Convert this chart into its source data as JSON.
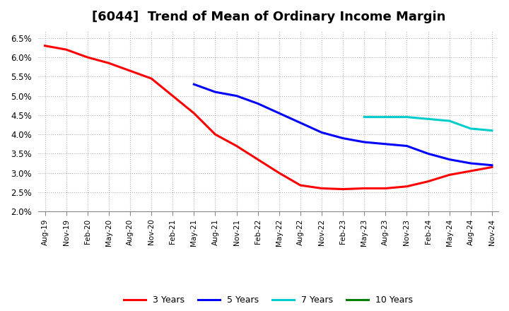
{
  "title": "[6044]  Trend of Mean of Ordinary Income Margin",
  "title_fontsize": 13,
  "ylim": [
    0.02,
    0.067
  ],
  "yticks": [
    0.02,
    0.025,
    0.03,
    0.035,
    0.04,
    0.045,
    0.05,
    0.055,
    0.06,
    0.065
  ],
  "background_color": "#ffffff",
  "grid_color": "#aaaaaa",
  "series": {
    "3 Years": {
      "color": "#ff0000",
      "data": [
        [
          "Aug-19",
          0.063
        ],
        [
          "Nov-19",
          0.062
        ],
        [
          "Feb-20",
          0.06
        ],
        [
          "May-20",
          0.0585
        ],
        [
          "Aug-20",
          0.0565
        ],
        [
          "Nov-20",
          0.0545
        ],
        [
          "Feb-21",
          0.05
        ],
        [
          "May-21",
          0.0455
        ],
        [
          "Aug-21",
          0.04
        ],
        [
          "Nov-21",
          0.037
        ],
        [
          "Feb-22",
          0.0335
        ],
        [
          "May-22",
          0.03
        ],
        [
          "Aug-22",
          0.0268
        ],
        [
          "Nov-22",
          0.026
        ],
        [
          "Feb-23",
          0.0258
        ],
        [
          "May-23",
          0.026
        ],
        [
          "Aug-23",
          0.026
        ],
        [
          "Nov-23",
          0.0265
        ],
        [
          "Feb-24",
          0.0278
        ],
        [
          "May-24",
          0.0295
        ],
        [
          "Aug-24",
          0.0305
        ],
        [
          "Nov-24",
          0.0315
        ]
      ]
    },
    "5 Years": {
      "color": "#0000ff",
      "data": [
        [
          "May-21",
          0.053
        ],
        [
          "Aug-21",
          0.051
        ],
        [
          "Nov-21",
          0.05
        ],
        [
          "Feb-22",
          0.048
        ],
        [
          "May-22",
          0.0455
        ],
        [
          "Aug-22",
          0.043
        ],
        [
          "Nov-22",
          0.0405
        ],
        [
          "Feb-23",
          0.039
        ],
        [
          "May-23",
          0.038
        ],
        [
          "Aug-23",
          0.0375
        ],
        [
          "Nov-23",
          0.037
        ],
        [
          "Feb-24",
          0.035
        ],
        [
          "May-24",
          0.0335
        ],
        [
          "Aug-24",
          0.0325
        ],
        [
          "Nov-24",
          0.032
        ]
      ]
    },
    "7 Years": {
      "color": "#00cccc",
      "data": [
        [
          "May-23",
          0.0445
        ],
        [
          "Aug-23",
          0.0445
        ],
        [
          "Nov-23",
          0.0445
        ],
        [
          "Feb-24",
          0.044
        ],
        [
          "May-24",
          0.0435
        ],
        [
          "Aug-24",
          0.0415
        ],
        [
          "Nov-24",
          0.041
        ]
      ]
    },
    "10 Years": {
      "color": "#008000",
      "data": []
    }
  },
  "xtick_labels": [
    "Aug-19",
    "Nov-19",
    "Feb-20",
    "May-20",
    "Aug-20",
    "Nov-20",
    "Feb-21",
    "May-21",
    "Aug-21",
    "Nov-21",
    "Feb-22",
    "May-22",
    "Aug-22",
    "Nov-22",
    "Feb-23",
    "May-23",
    "Aug-23",
    "Nov-23",
    "Feb-24",
    "May-24",
    "Aug-24",
    "Nov-24"
  ],
  "line_width": 2.2
}
